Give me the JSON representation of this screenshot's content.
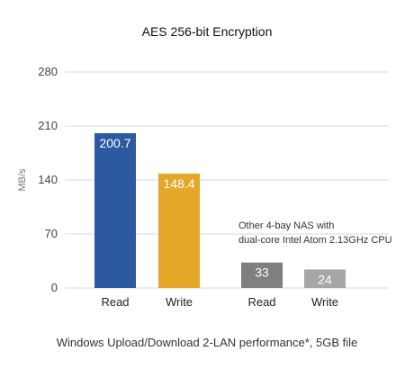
{
  "chart_data": {
    "type": "bar",
    "title": "AES 256-bit Encryption",
    "ylabel": "MB/s",
    "xlabel": "",
    "ylim": [
      0,
      280
    ],
    "yticks": [
      0,
      70,
      140,
      210,
      280
    ],
    "grid": true,
    "categories": [
      "Read",
      "Write",
      "Read",
      "Write"
    ],
    "values": [
      200.7,
      148.4,
      33,
      24
    ],
    "data_labels": [
      "200.7",
      "148.4",
      "33",
      "24"
    ],
    "colors": [
      "#2b5aa0",
      "#e3a72a",
      "#7f7f7f",
      "#a6a6a6"
    ],
    "annotation": [
      "Other 4-bay NAS with",
      "dual-core Intel Atom 2.13GHz CPU"
    ],
    "footer": "Windows Upload/Download 2-LAN performance*, 5GB file"
  }
}
